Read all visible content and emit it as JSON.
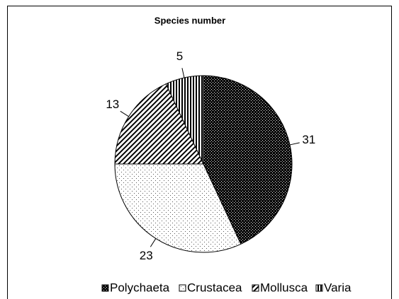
{
  "chart_data": {
    "type": "pie",
    "title": "Species number",
    "categories": [
      "Polychaeta",
      "Crustacea",
      "Mollusca",
      "Varia"
    ],
    "values": [
      31,
      23,
      13,
      5
    ]
  }
}
